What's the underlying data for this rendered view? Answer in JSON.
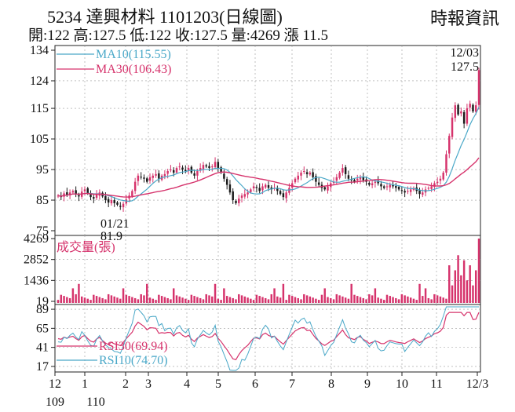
{
  "header": {
    "title": "5234  達興材料 1101203(日線圖)",
    "source": "時報資訊",
    "quote": "開:122 高:127.5 低:122 收:127.5 量:4269 漲 11.5"
  },
  "chart_data": [
    {
      "type": "candlestick",
      "panel": "price",
      "y_ticks": [
        134,
        124,
        115,
        105,
        95,
        85,
        75
      ],
      "ylim": [
        75,
        134
      ],
      "legend": [
        {
          "label": "MA10(115.55)",
          "color": "#4aa8c8"
        },
        {
          "label": "MA30(106.43)",
          "color": "#d6336c"
        }
      ],
      "annotations": [
        {
          "date": "12/03",
          "value": "127.5",
          "position": "top-right"
        },
        {
          "date": "01/21",
          "value": "81.9",
          "position": "bottom-left"
        }
      ],
      "close_series": [
        86.5,
        86.0,
        87.2,
        86.8,
        87.5,
        88.0,
        87.0,
        86.2,
        87.8,
        88.5,
        87.2,
        86.0,
        85.5,
        86.8,
        87.5,
        86.2,
        85.0,
        84.2,
        85.0,
        84.0,
        83.5,
        82.8,
        83.8,
        85.2,
        86.5,
        88.0,
        91.0,
        93.0,
        92.5,
        92.0,
        91.0,
        92.5,
        93.0,
        93.5,
        92.0,
        93.0,
        93.5,
        94.5,
        95.0,
        94.0,
        95.5,
        96.0,
        95.0,
        94.5,
        95.5,
        94.0,
        93.0,
        94.5,
        95.5,
        96.5,
        96.0,
        95.5,
        96.0,
        97.5,
        95.5,
        94.0,
        92.0,
        90.0,
        87.5,
        85.0,
        84.0,
        85.5,
        86.5,
        87.0,
        87.5,
        88.5,
        89.5,
        89.0,
        88.0,
        89.5,
        90.0,
        89.0,
        88.5,
        89.0,
        88.0,
        87.0,
        86.0,
        87.5,
        89.0,
        90.5,
        92.0,
        93.0,
        94.0,
        94.5,
        93.5,
        94.0,
        92.5,
        91.0,
        90.0,
        89.0,
        88.5,
        89.5,
        90.5,
        91.0,
        92.5,
        94.0,
        95.5,
        93.5,
        92.0,
        91.5,
        91.0,
        92.0,
        92.5,
        91.5,
        91.0,
        90.0,
        90.5,
        91.0,
        90.5,
        89.5,
        89.0,
        89.5,
        90.0,
        89.5,
        89.0,
        88.5,
        88.0,
        87.5,
        88.0,
        88.5,
        89.0,
        88.0,
        87.0,
        87.5,
        88.5,
        89.0,
        89.5,
        90.5,
        91.0,
        92.0,
        94.0,
        100.0,
        106.0,
        112.0,
        116.0,
        113.0,
        114.0,
        110.0,
        115.0,
        116.5,
        114.0,
        116.0,
        127.5
      ],
      "ma10_value": 115.55,
      "ma30_value": 106.43
    },
    {
      "type": "bar",
      "panel": "volume",
      "label": "成交量(張)",
      "y_ticks": [
        4269,
        2852,
        1436,
        19
      ],
      "ylim": [
        19,
        4269
      ]
    },
    {
      "type": "line",
      "panel": "rsi",
      "y_ticks": [
        89,
        65,
        41,
        17
      ],
      "ylim": [
        10,
        95
      ],
      "legend": [
        {
          "label": "RSI30(69.94)",
          "color": "#d6336c"
        },
        {
          "label": "RSI10(74.70)",
          "color": "#4aa8c8"
        }
      ]
    }
  ],
  "x_axis": {
    "month_labels": [
      "12",
      "1",
      "2",
      "3",
      "4",
      "5",
      "6",
      "7",
      "8",
      "9",
      "10",
      "11",
      "12/3"
    ],
    "year_labels": [
      "109",
      "110"
    ]
  },
  "colors": {
    "up": "#d6336c",
    "down": "#1a1a1a",
    "ma10": "#4aa8c8",
    "ma30": "#d6336c",
    "volume": "#d6336c",
    "grid": "#9a9a9a"
  }
}
